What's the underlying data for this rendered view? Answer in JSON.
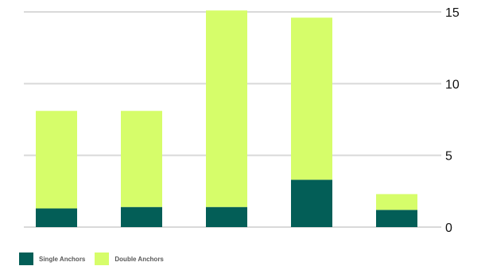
{
  "chart_data": {
    "type": "bar",
    "stacked": true,
    "categories": [
      "",
      "",
      "",
      "",
      ""
    ],
    "series": [
      {
        "name": "Single Anchors",
        "color": "#035e57",
        "values": [
          1.3,
          1.4,
          1.4,
          3.3,
          1.2
        ]
      },
      {
        "name": "Double Anchors",
        "color": "#d6fd6a",
        "values": [
          6.8,
          6.7,
          13.7,
          11.3,
          1.1
        ]
      }
    ],
    "y_ticks": [
      "0",
      "5",
      "10",
      "15"
    ],
    "ylim": [
      0,
      15
    ],
    "y_axis_side": "right",
    "grid": true,
    "legend_position": "bottom-left",
    "title": "",
    "xlabel": "",
    "ylabel": ""
  }
}
